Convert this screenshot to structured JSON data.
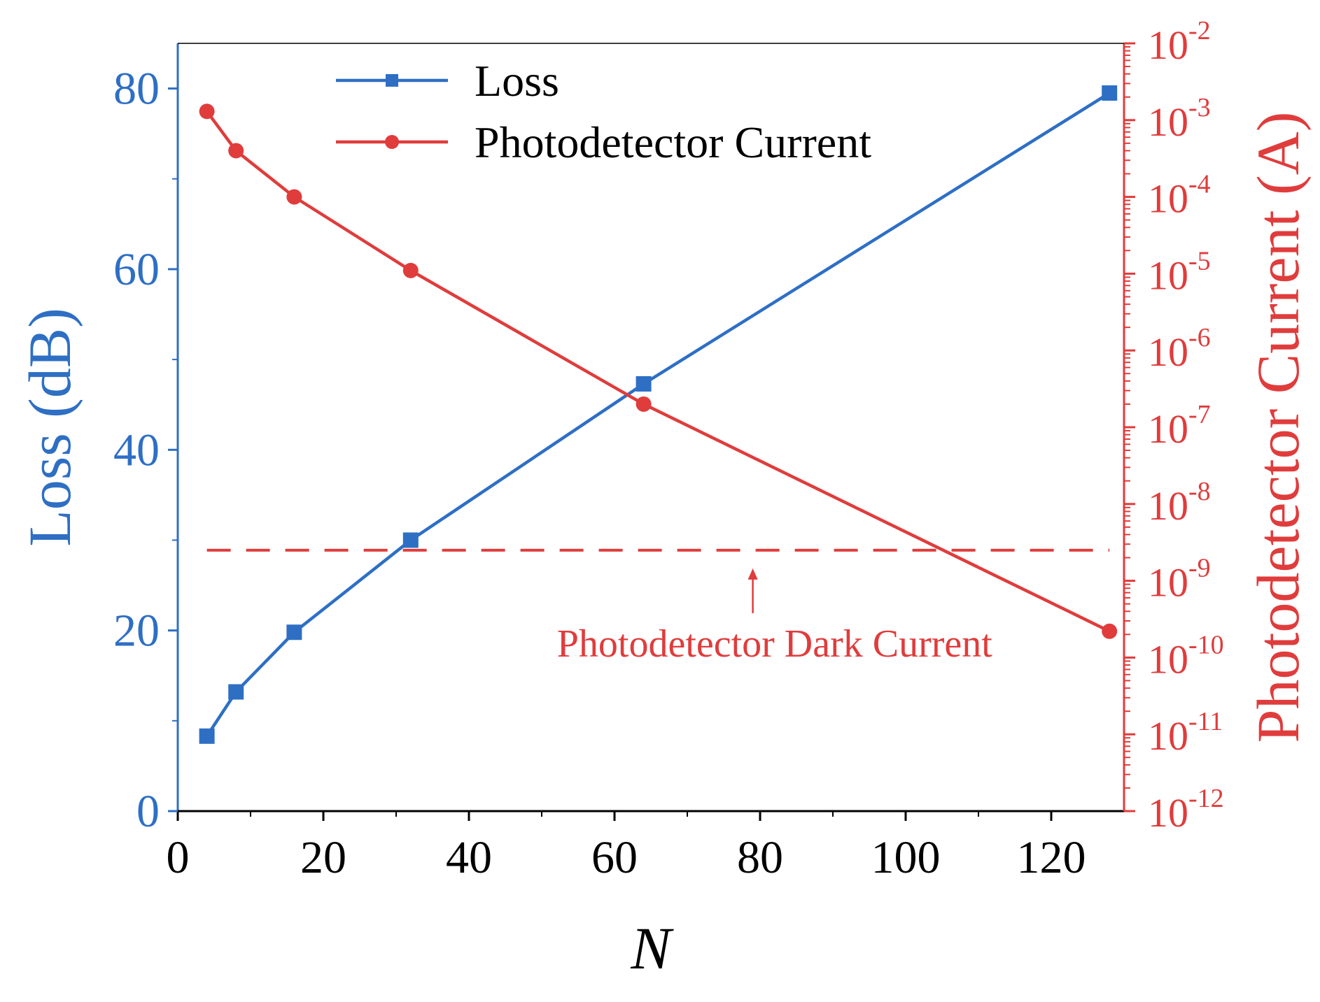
{
  "chart_data": {
    "type": "line",
    "x": [
      4,
      8,
      16,
      32,
      64,
      128
    ],
    "xlabel": "N",
    "xlim": [
      0,
      130
    ],
    "xticks": [
      0,
      20,
      40,
      60,
      80,
      100,
      120
    ],
    "xtick_labels": [
      "0",
      "20",
      "40",
      "60",
      "80",
      "100",
      "120"
    ],
    "y_left": {
      "label": "Loss (dB)",
      "lim": [
        0,
        85
      ],
      "ticks": [
        0,
        20,
        40,
        60,
        80
      ],
      "tick_labels": [
        "0",
        "20",
        "40",
        "60",
        "80"
      ],
      "color": "#2e6fc4"
    },
    "y_right": {
      "label": "Photodetector Current (A)",
      "scale": "log",
      "lim": [
        1e-12,
        0.01
      ],
      "tick_exponents": [
        -12,
        -11,
        -10,
        -9,
        -8,
        -7,
        -6,
        -5,
        -4,
        -3,
        -2
      ],
      "tick_base": "10",
      "color": "#e03c3c"
    },
    "series": [
      {
        "name": "Loss",
        "axis": "left",
        "marker": "square",
        "color": "#2e6fc4",
        "values": [
          8.3,
          13.2,
          19.8,
          30.0,
          47.3,
          79.5
        ]
      },
      {
        "name": "Photodetector Current",
        "axis": "right",
        "marker": "circle",
        "color": "#e03c3c",
        "values": [
          0.0013,
          0.0004,
          0.0001,
          1.1e-05,
          2e-07,
          2.2e-10
        ]
      }
    ],
    "reference_line": {
      "axis": "right",
      "value": 2.5e-09,
      "style": "dashed",
      "color": "#e03c3c",
      "label": "Photodetector Dark Current"
    },
    "legend": {
      "position": "top-left"
    }
  }
}
